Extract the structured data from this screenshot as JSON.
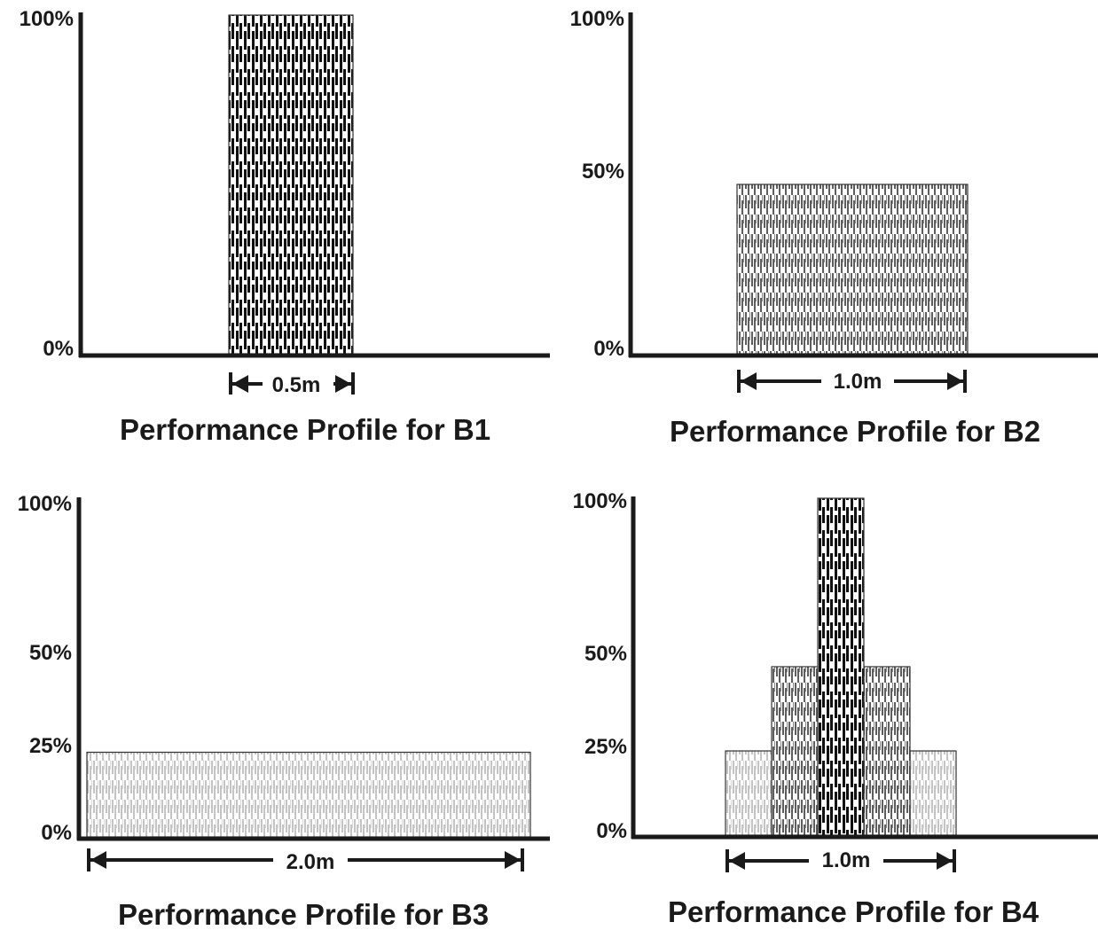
{
  "chart_data": [
    {
      "type": "bar",
      "title": "Performance Profile for B1",
      "y_ticks": [
        "100%",
        "0%"
      ],
      "ylim": [
        0,
        100
      ],
      "bars": [
        {
          "x_start": -0.25,
          "x_end": 0.25,
          "value": 100,
          "tone": "dark"
        }
      ],
      "width_label": "0.5m",
      "width_extent": [
        -0.25,
        0.25
      ]
    },
    {
      "type": "bar",
      "title": "Performance Profile for B2",
      "y_ticks": [
        "100%",
        "50%",
        "0%"
      ],
      "ylim": [
        0,
        100
      ],
      "bars": [
        {
          "x_start": -0.5,
          "x_end": 0.5,
          "value": 50,
          "tone": "medium"
        }
      ],
      "width_label": "1.0m",
      "width_extent": [
        -0.5,
        0.5
      ]
    },
    {
      "type": "bar",
      "title": "Performance Profile for B3",
      "y_ticks": [
        "100%",
        "50%",
        "25%",
        "0%"
      ],
      "ylim": [
        0,
        100
      ],
      "bars": [
        {
          "x_start": -1.0,
          "x_end": 1.0,
          "value": 25,
          "tone": "light"
        }
      ],
      "width_label": "2.0m",
      "width_extent": [
        -1.0,
        1.0
      ]
    },
    {
      "type": "bar",
      "title": "Performance Profile for B4",
      "y_ticks": [
        "100%",
        "50%",
        "25%",
        "0%"
      ],
      "ylim": [
        0,
        100
      ],
      "bars": [
        {
          "x_start": -0.5,
          "x_end": -0.3,
          "value": 25,
          "tone": "light"
        },
        {
          "x_start": 0.3,
          "x_end": 0.5,
          "value": 25,
          "tone": "light"
        },
        {
          "x_start": -0.3,
          "x_end": -0.1,
          "value": 50,
          "tone": "medium"
        },
        {
          "x_start": 0.1,
          "x_end": 0.3,
          "value": 50,
          "tone": "medium"
        },
        {
          "x_start": -0.1,
          "x_end": 0.1,
          "value": 100,
          "tone": "dark"
        }
      ],
      "width_label": "1.0m",
      "width_extent": [
        -0.5,
        0.5
      ]
    }
  ],
  "colors": {
    "axis": "#1a1a1a",
    "dark": "#1c1c1c",
    "medium": "#6e6e6e",
    "light": "#c8c8c8",
    "bar_outline": "#333333"
  }
}
